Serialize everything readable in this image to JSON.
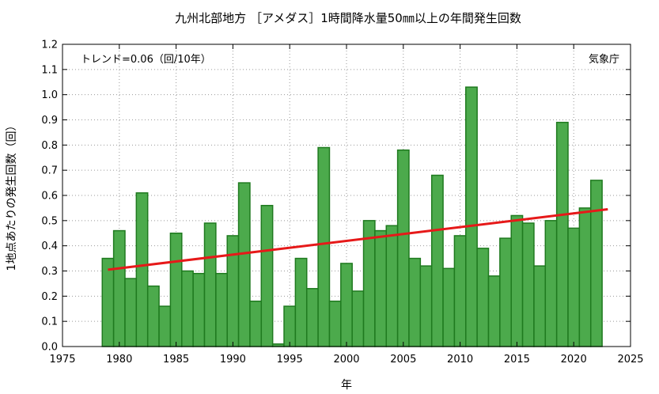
{
  "chart_data": {
    "type": "bar",
    "title": "九州北部地方 ［アメダス］1時間降水量50㎜以上の年間発生回数",
    "xlabel": "年",
    "ylabel": "1地点あたりの発生回数（回）",
    "trend_label": "トレンド=0.06（回/10年）",
    "source_label": "気象庁",
    "xlim": [
      1975,
      2025
    ],
    "ylim": [
      0,
      1.2
    ],
    "xticks": [
      1975,
      1980,
      1985,
      1990,
      1995,
      2000,
      2005,
      2010,
      2015,
      2020,
      2025
    ],
    "yticks": [
      0.0,
      0.1,
      0.2,
      0.3,
      0.4,
      0.5,
      0.6,
      0.7,
      0.8,
      0.9,
      1.0,
      1.1,
      1.2
    ],
    "grid": true,
    "bar_color": "#4caa4c",
    "bar_edge_color": "#1f7a1f",
    "trend_color": "#e61919",
    "years": [
      1979,
      1980,
      1981,
      1982,
      1983,
      1984,
      1985,
      1986,
      1987,
      1988,
      1989,
      1990,
      1991,
      1992,
      1993,
      1994,
      1995,
      1996,
      1997,
      1998,
      1999,
      2000,
      2001,
      2002,
      2003,
      2004,
      2005,
      2006,
      2007,
      2008,
      2009,
      2010,
      2011,
      2012,
      2013,
      2014,
      2015,
      2016,
      2017,
      2018,
      2019,
      2020,
      2021,
      2022,
      2023
    ],
    "values": [
      0.35,
      0.46,
      0.27,
      0.61,
      0.24,
      0.16,
      0.45,
      0.3,
      0.29,
      0.49,
      0.29,
      0.44,
      0.65,
      0.18,
      0.56,
      0.01,
      0.16,
      0.35,
      0.23,
      0.79,
      0.18,
      0.33,
      0.22,
      0.5,
      0.46,
      0.48,
      0.78,
      0.35,
      0.32,
      0.68,
      0.31,
      0.44,
      1.03,
      0.39,
      0.28,
      0.43,
      0.52,
      0.49,
      0.32,
      0.5,
      0.89,
      0.47,
      0.55,
      0.66,
      0.0
    ],
    "trend": {
      "x": [
        1979,
        2023
      ],
      "y": [
        0.305,
        0.545
      ]
    }
  }
}
